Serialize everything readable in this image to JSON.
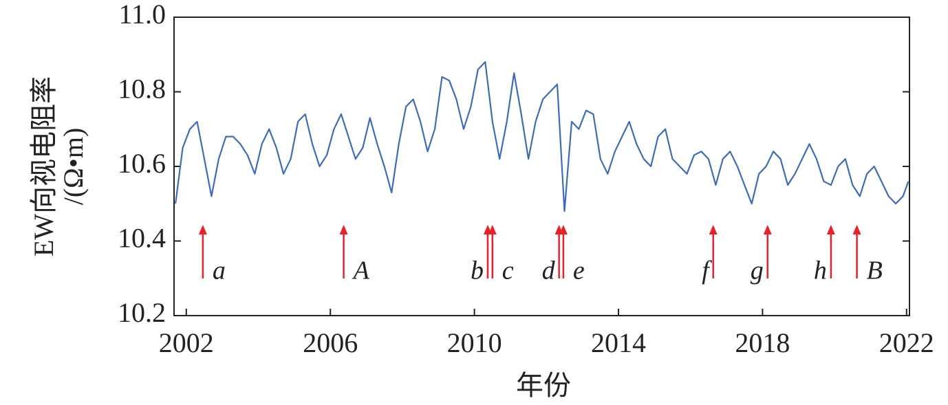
{
  "chart_data": {
    "type": "line",
    "xlabel": "年份",
    "ylabel": [
      "EW向视电阻率",
      "/(Ω•m)"
    ],
    "x": [
      2001.7,
      2001.9,
      2002.1,
      2002.3,
      2002.5,
      2002.7,
      2002.9,
      2003.1,
      2003.3,
      2003.5,
      2003.7,
      2003.9,
      2004.1,
      2004.3,
      2004.5,
      2004.7,
      2004.9,
      2005.1,
      2005.3,
      2005.5,
      2005.7,
      2005.9,
      2006.1,
      2006.3,
      2006.5,
      2006.7,
      2006.9,
      2007.1,
      2007.3,
      2007.5,
      2007.7,
      2007.9,
      2008.1,
      2008.3,
      2008.5,
      2008.7,
      2008.9,
      2009.1,
      2009.3,
      2009.5,
      2009.7,
      2009.9,
      2010.1,
      2010.3,
      2010.5,
      2010.7,
      2010.9,
      2011.1,
      2011.3,
      2011.5,
      2011.7,
      2011.9,
      2012.1,
      2012.3,
      2012.5,
      2012.7,
      2012.9,
      2013.1,
      2013.3,
      2013.5,
      2013.7,
      2013.9,
      2014.1,
      2014.3,
      2014.5,
      2014.7,
      2014.9,
      2015.1,
      2015.3,
      2015.5,
      2015.7,
      2015.9,
      2016.1,
      2016.3,
      2016.5,
      2016.7,
      2016.9,
      2017.1,
      2017.3,
      2017.5,
      2017.7,
      2017.9,
      2018.1,
      2018.3,
      2018.5,
      2018.7,
      2018.9,
      2019.1,
      2019.3,
      2019.5,
      2019.7,
      2019.9,
      2020.1,
      2020.3,
      2020.5,
      2020.7,
      2020.9,
      2021.1,
      2021.3,
      2021.5,
      2021.7,
      2021.9,
      2022.05
    ],
    "series": [
      {
        "color": "#3c6cb9",
        "values": [
          10.5,
          10.65,
          10.7,
          10.72,
          10.62,
          10.52,
          10.62,
          10.68,
          10.68,
          10.66,
          10.63,
          10.58,
          10.66,
          10.7,
          10.65,
          10.58,
          10.62,
          10.72,
          10.74,
          10.66,
          10.6,
          10.63,
          10.7,
          10.74,
          10.68,
          10.62,
          10.65,
          10.73,
          10.66,
          10.6,
          10.53,
          10.66,
          10.76,
          10.78,
          10.72,
          10.64,
          10.7,
          10.84,
          10.83,
          10.78,
          10.7,
          10.76,
          10.86,
          10.88,
          10.72,
          10.62,
          10.72,
          10.85,
          10.74,
          10.62,
          10.72,
          10.78,
          10.8,
          10.82,
          10.48,
          10.72,
          10.7,
          10.75,
          10.74,
          10.62,
          10.58,
          10.64,
          10.68,
          10.72,
          10.66,
          10.62,
          10.6,
          10.68,
          10.7,
          10.62,
          10.6,
          10.58,
          10.63,
          10.64,
          10.62,
          10.55,
          10.62,
          10.64,
          10.6,
          10.55,
          10.5,
          10.58,
          10.6,
          10.64,
          10.62,
          10.55,
          10.58,
          10.62,
          10.66,
          10.62,
          10.56,
          10.55,
          10.6,
          10.62,
          10.55,
          10.52,
          10.58,
          10.6,
          10.56,
          10.52,
          10.5,
          10.52,
          10.56
        ]
      }
    ],
    "xlim": [
      2001.66,
      2022.08
    ],
    "xticks": [
      2002,
      2006,
      2010,
      2014,
      2018,
      2022
    ],
    "ylim": [
      10.2,
      11.0
    ],
    "yticks": [
      10.2,
      10.4,
      10.6,
      10.8,
      {
        "value": 11.0,
        "label": "11.0"
      }
    ],
    "annotations": {
      "color": "#e8202a",
      "events": [
        {
          "label": "a",
          "x": 2002.46,
          "side": "right"
        },
        {
          "label": "A",
          "x": 2006.37,
          "side": "right"
        },
        {
          "label": "b",
          "x": 2010.37,
          "side": "left"
        },
        {
          "label": "c",
          "x": 2010.5,
          "side": "right"
        },
        {
          "label": "d",
          "x": 2012.35,
          "side": "left"
        },
        {
          "label": "e",
          "x": 2012.47,
          "side": "right"
        },
        {
          "label": "f",
          "x": 2016.63,
          "side": "left"
        },
        {
          "label": "g",
          "x": 2018.14,
          "side": "left"
        },
        {
          "label": "h",
          "x": 2019.9,
          "side": "left"
        },
        {
          "label": "B",
          "x": 2020.62,
          "side": "right"
        }
      ]
    }
  }
}
